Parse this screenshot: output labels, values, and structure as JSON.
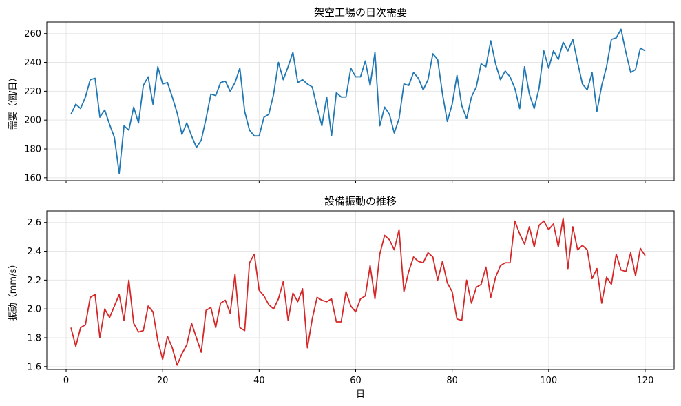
{
  "chart_data": [
    {
      "type": "line",
      "title": "架空工場の日次需要",
      "xlabel": "",
      "ylabel": "需要（個/日）",
      "xlim": [
        -4,
        126
      ],
      "ylim": [
        158,
        268
      ],
      "xticks": [
        0,
        20,
        40,
        60,
        80,
        100,
        120
      ],
      "yticks": [
        160,
        180,
        200,
        220,
        240,
        260
      ],
      "grid": true,
      "color": "#1f77b4",
      "x_start": 1,
      "values": [
        204,
        211,
        208,
        216,
        228,
        229,
        202,
        207,
        197,
        188,
        163,
        196,
        193,
        209,
        198,
        224,
        230,
        211,
        237,
        225,
        226,
        216,
        205,
        190,
        198,
        189,
        181,
        186,
        201,
        218,
        217,
        226,
        227,
        220,
        226,
        236,
        206,
        193,
        189,
        189,
        202,
        204,
        218,
        240,
        228,
        237,
        247,
        226,
        228,
        225,
        223,
        209,
        196,
        216,
        189,
        219,
        216,
        216,
        236,
        230,
        230,
        241,
        224,
        247,
        196,
        209,
        204,
        191,
        201,
        225,
        224,
        233,
        229,
        221,
        228,
        246,
        242,
        218,
        199,
        211,
        231,
        210,
        201,
        216,
        223,
        239,
        237,
        255,
        239,
        228,
        234,
        230,
        222,
        208,
        237,
        218,
        208,
        222,
        248,
        236,
        248,
        242,
        254,
        248,
        256,
        240,
        225,
        221,
        233,
        206,
        224,
        237,
        256,
        257,
        263,
        247,
        233,
        235,
        250,
        248
      ]
    },
    {
      "type": "line",
      "title": "設備振動の推移",
      "xlabel": "日",
      "ylabel": "振動（mm/s）",
      "xlim": [
        -4,
        126
      ],
      "ylim": [
        1.58,
        2.68
      ],
      "xticks": [
        0,
        20,
        40,
        60,
        80,
        100,
        120
      ],
      "xticklabels": [
        "0",
        "20",
        "40",
        "60",
        "80",
        "100",
        "120"
      ],
      "yticks": [
        1.6,
        1.8,
        2.0,
        2.2,
        2.4,
        2.6
      ],
      "yticklabels": [
        "1.6",
        "1.8",
        "2.0",
        "2.2",
        "2.4",
        "2.6"
      ],
      "grid": true,
      "color": "#d62728",
      "x_start": 1,
      "values": [
        1.87,
        1.74,
        1.87,
        1.89,
        2.08,
        2.1,
        1.8,
        2.0,
        1.94,
        2.02,
        2.1,
        1.92,
        2.2,
        1.9,
        1.84,
        1.85,
        2.02,
        1.98,
        1.78,
        1.65,
        1.81,
        1.73,
        1.61,
        1.69,
        1.75,
        1.9,
        1.8,
        1.7,
        1.99,
        2.01,
        1.87,
        2.04,
        2.06,
        1.97,
        2.24,
        1.87,
        1.85,
        2.32,
        2.38,
        2.13,
        2.09,
        2.03,
        2.0,
        2.07,
        2.19,
        1.92,
        2.11,
        2.05,
        2.14,
        1.73,
        1.93,
        2.08,
        2.06,
        2.05,
        2.07,
        1.91,
        1.91,
        2.12,
        2.02,
        1.98,
        2.07,
        2.09,
        2.3,
        2.07,
        2.38,
        2.51,
        2.48,
        2.41,
        2.55,
        2.12,
        2.26,
        2.36,
        2.33,
        2.32,
        2.39,
        2.36,
        2.2,
        2.33,
        2.18,
        2.12,
        1.93,
        1.92,
        2.2,
        2.04,
        2.15,
        2.17,
        2.29,
        2.08,
        2.22,
        2.3,
        2.32,
        2.32,
        2.61,
        2.52,
        2.45,
        2.57,
        2.43,
        2.58,
        2.61,
        2.55,
        2.59,
        2.43,
        2.63,
        2.28,
        2.57,
        2.41,
        2.44,
        2.41,
        2.21,
        2.28,
        2.04,
        2.22,
        2.17,
        2.38,
        2.27,
        2.26,
        2.39,
        2.23,
        2.42,
        2.37
      ]
    }
  ]
}
